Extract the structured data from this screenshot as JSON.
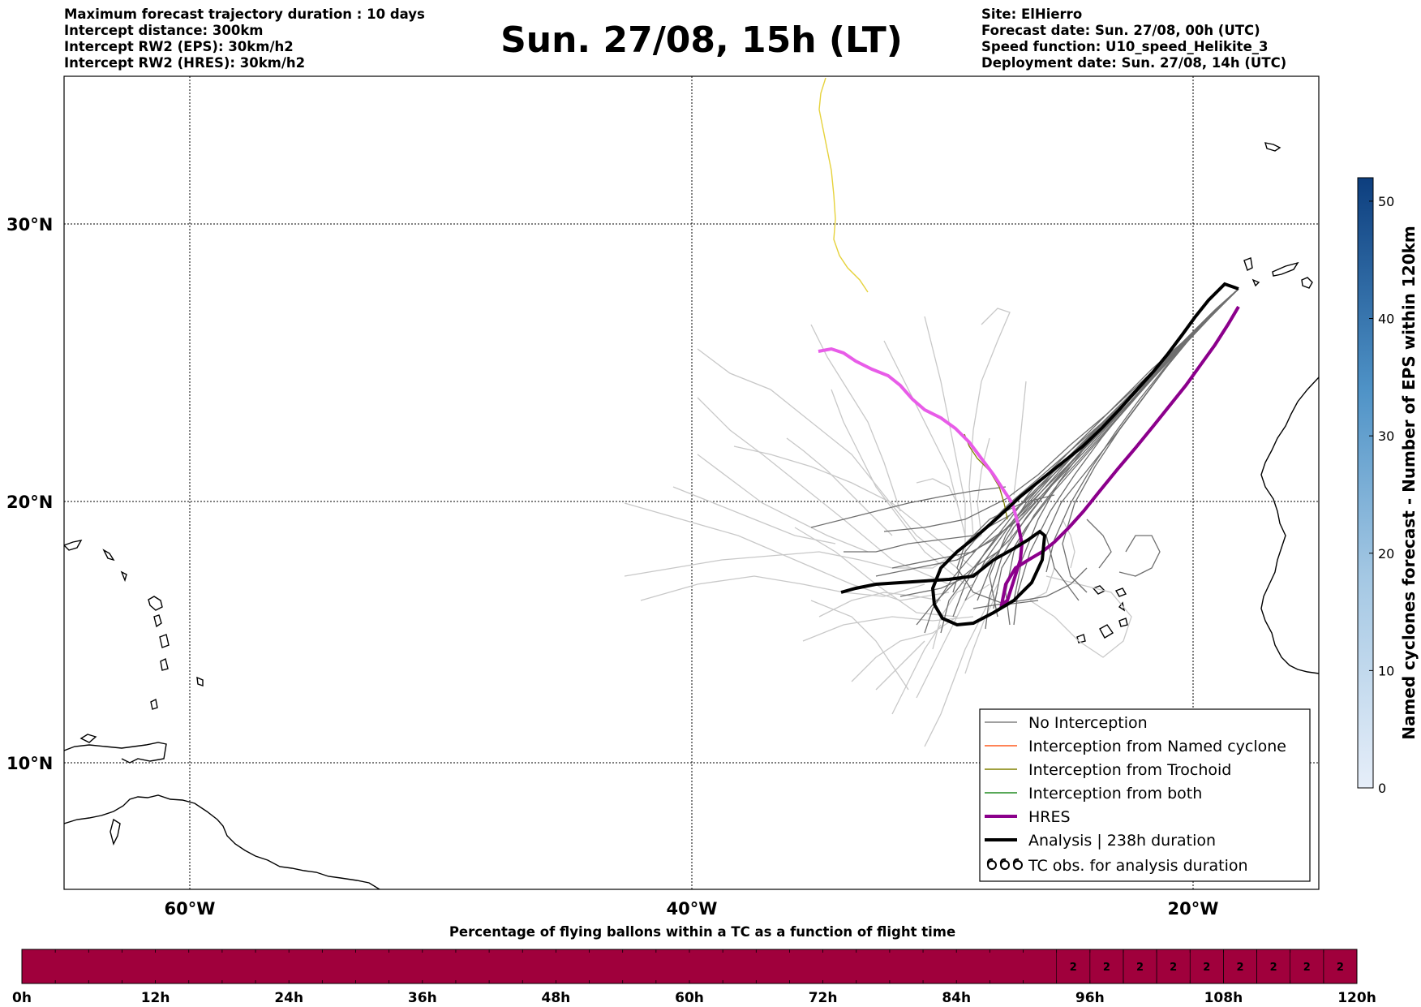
{
  "header": {
    "left_lines": [
      "Maximum forecast trajectory duration : 10 days",
      "Intercept distance: 300km",
      "Intercept RW2 (EPS):  30km/h2",
      "Intercept RW2 (HRES): 30km/h2"
    ],
    "title": "Sun. 27/08, 15h (LT)",
    "right_lines": [
      "Site: ElHierro",
      "Forecast date: Sun. 27/08, 00h (UTC)",
      "Speed function: U10_speed_Helikite_3",
      "Deployment date: Sun. 27/08, 14h (UTC)"
    ]
  },
  "map": {
    "lat_labels": [
      "30°N",
      "20°N",
      "10°N"
    ],
    "lon_labels": [
      "60°W",
      "40°W",
      "20°W"
    ]
  },
  "legend": {
    "items": [
      {
        "label": "No Interception",
        "color": "#808080"
      },
      {
        "label": "Interception from Named cyclone",
        "color": "#ff5a1e"
      },
      {
        "label": "Interception from Trochoid",
        "color": "#808000"
      },
      {
        "label": "Interception from both",
        "color": "#228b22"
      },
      {
        "label": "HRES",
        "color": "#8b008b"
      },
      {
        "label": "Analysis | 238h duration",
        "color": "#000000"
      },
      {
        "label": "TC obs. for analysis duration",
        "color": "#000000",
        "icon": "cyclone-symbols"
      }
    ]
  },
  "colorbar": {
    "label": "Named cyclones forecast - Number of EPS within 120km",
    "ticks": [
      "0",
      "10",
      "20",
      "30",
      "40",
      "50"
    ]
  },
  "timebar": {
    "title": "Percentage of flying ballons within a TC as a function of flight time",
    "ticks": [
      "0h",
      "12h",
      "24h",
      "36h",
      "48h",
      "60h",
      "72h",
      "84h",
      "96h",
      "108h",
      "120h"
    ],
    "cell_values": [
      "2",
      "2",
      "2",
      "2",
      "2",
      "2",
      "2",
      "2",
      "2"
    ],
    "fill_color": "#a0003c"
  }
}
